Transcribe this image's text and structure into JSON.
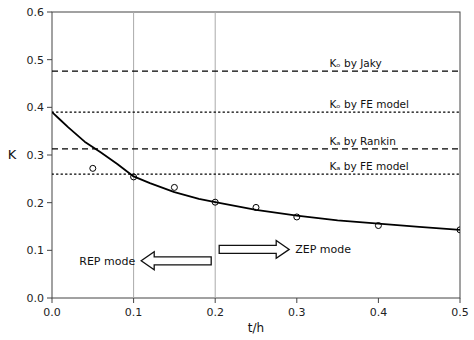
{
  "chart_data": {
    "type": "line",
    "xlabel": "t/h",
    "ylabel": "K",
    "xlim": [
      0,
      0.5
    ],
    "ylim": [
      0.0,
      0.6
    ],
    "xticks": [
      {
        "value": 0,
        "label": "0.0"
      },
      0.1,
      0.2,
      0.3,
      0.4,
      0.5
    ],
    "yticks": [
      {
        "value": 0.0,
        "label": "0.0"
      },
      0.1,
      0.2,
      0.3,
      0.4,
      0.5,
      0.6
    ],
    "grid": false,
    "series": [
      {
        "type": "line",
        "line_style": "solid",
        "color": "#000000",
        "x": [
          0.0,
          0.01,
          0.02,
          0.04,
          0.06,
          0.08,
          0.1,
          0.12,
          0.15,
          0.18,
          0.2,
          0.25,
          0.3,
          0.35,
          0.4,
          0.45,
          0.5
        ],
        "values": [
          0.39,
          0.374,
          0.358,
          0.328,
          0.305,
          0.281,
          0.255,
          0.241,
          0.222,
          0.208,
          0.201,
          0.185,
          0.173,
          0.163,
          0.156,
          0.149,
          0.143
        ]
      },
      {
        "type": "scatter",
        "marker": "circle",
        "color": "#000000",
        "x": [
          0.05,
          0.1,
          0.15,
          0.2,
          0.25,
          0.3,
          0.4,
          0.5
        ],
        "values": [
          0.272,
          0.254,
          0.232,
          0.201,
          0.19,
          0.17,
          0.152,
          0.143
        ]
      }
    ],
    "hlines": [
      {
        "value": 0.476,
        "label": "Kₒ by Jaky",
        "line_style": "dashed",
        "color": "#000000"
      },
      {
        "value": 0.39,
        "label": "Kₒ by FE model",
        "line_style": "dotted",
        "color": "#000000"
      },
      {
        "value": 0.313,
        "label": "Kₐ by Rankin",
        "line_style": "dashed",
        "color": "#000000"
      },
      {
        "value": 0.26,
        "label": "Kₐ by FE model",
        "line_style": "dotted",
        "color": "#000000"
      }
    ],
    "vlines": [
      {
        "value": 0.1,
        "color": "#aaaaaa"
      },
      {
        "value": 0.2,
        "color": "#aaaaaa"
      }
    ],
    "annotations": [
      "REP mode",
      "ZEP mode"
    ]
  }
}
